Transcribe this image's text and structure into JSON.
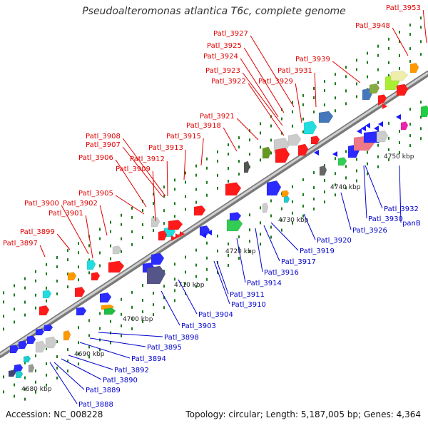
{
  "title": "Pseudoalteromonas atlantica T6c, complete genome",
  "accession": "Accession: NC_008228",
  "topology": "Topology: circular; Length: 5,187,005 bp; Genes: 4,364",
  "colors": {
    "forward_label": "#e00000",
    "reverse_label": "#0000cc",
    "backbone": "#9a9a9a",
    "tick": "#1a7a1a",
    "forward_gene": "#ff1a1a",
    "reverse_gene": "#1a1aff"
  },
  "kbp_labels": [
    "4680 kbp",
    "4690 kbp",
    "4700 kbp",
    "4710 kbp",
    "4720 kbp",
    "4730 kbp",
    "4740 kbp",
    "4750 kbp"
  ],
  "forward_labels": [
    "Patl_3897",
    "Patl_3899",
    "Patl_3900",
    "Patl_3901",
    "Patl_3902",
    "Patl_3905",
    "Patl_3906",
    "Patl_3907",
    "Patl_3908",
    "Patl_3909",
    "Patl_3912",
    "Patl_3913",
    "Patl_3915",
    "Patl_3918",
    "Patl_3921",
    "Patl_3922",
    "Patl_3923",
    "Patl_3924",
    "Patl_3925",
    "Patl_3927",
    "Patl_3929",
    "Patl_3931",
    "Patl_3939",
    "Patl_3948",
    "Patl_3953"
  ],
  "reverse_labels": [
    "Patl_3888",
    "Patl_3889",
    "Patl_3890",
    "Patl_3892",
    "Patl_3894",
    "Patl_3895",
    "Patl_3898",
    "Patl_3903",
    "Patl_3904",
    "Patl_3910",
    "Patl_3911",
    "Patl_3914",
    "Patl_3916",
    "Patl_3917",
    "Patl_3919",
    "Patl_3920",
    "Patl_3926",
    "Patl_3930",
    "Patl_3932",
    "panB"
  ]
}
